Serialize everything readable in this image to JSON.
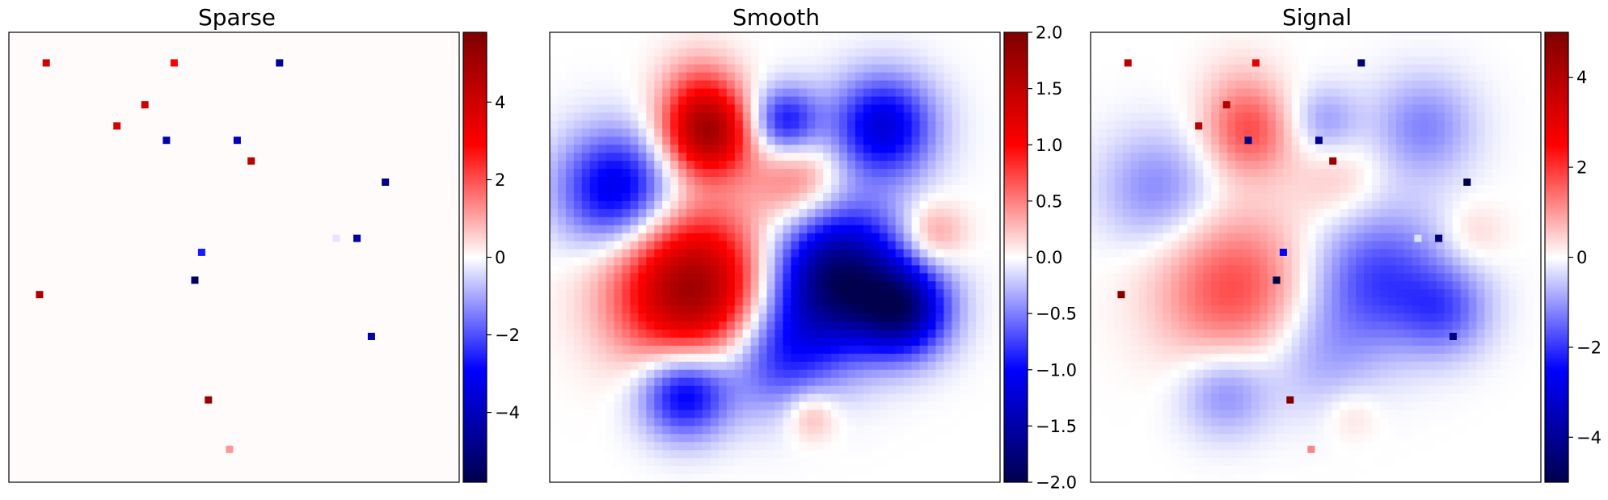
{
  "chart_data": [
    {
      "type": "heatmap",
      "title": "Sparse",
      "grid": false,
      "colormap": "seismic",
      "axes_visible": false,
      "colorbar": {
        "vmin": -5.8,
        "vmax": 5.8,
        "ticks": [
          4,
          2,
          0,
          -2,
          -4
        ],
        "tick_labels": [
          "4",
          "2",
          "0",
          "−2",
          "−4"
        ]
      },
      "background_value": 0,
      "spikes": [
        {
          "x": 0.083,
          "y": 0.068,
          "value": 3.9
        },
        {
          "x": 0.367,
          "y": 0.068,
          "value": 3.0
        },
        {
          "x": 0.601,
          "y": 0.068,
          "value": -4.5
        },
        {
          "x": 0.302,
          "y": 0.161,
          "value": 4.0
        },
        {
          "x": 0.24,
          "y": 0.208,
          "value": 3.8
        },
        {
          "x": 0.35,
          "y": 0.24,
          "value": -4.2
        },
        {
          "x": 0.507,
          "y": 0.24,
          "value": -4.0
        },
        {
          "x": 0.538,
          "y": 0.286,
          "value": 4.4
        },
        {
          "x": 0.836,
          "y": 0.333,
          "value": -5.0
        },
        {
          "x": 0.727,
          "y": 0.458,
          "value": -0.3
        },
        {
          "x": 0.773,
          "y": 0.458,
          "value": -4.4
        },
        {
          "x": 0.428,
          "y": 0.489,
          "value": -2.6
        },
        {
          "x": 0.413,
          "y": 0.551,
          "value": -5.5
        },
        {
          "x": 0.068,
          "y": 0.583,
          "value": 4.8
        },
        {
          "x": 0.805,
          "y": 0.676,
          "value": -4.2
        },
        {
          "x": 0.443,
          "y": 0.817,
          "value": 5.2
        },
        {
          "x": 0.49,
          "y": 0.927,
          "value": 1.2
        }
      ]
    },
    {
      "type": "heatmap",
      "title": "Smooth",
      "grid": false,
      "colormap": "seismic",
      "axes_visible": false,
      "colorbar": {
        "vmin": -2.0,
        "vmax": 2.0,
        "ticks": [
          2.0,
          1.5,
          1.0,
          0.5,
          0.0,
          -0.5,
          -1.0,
          -1.5,
          -2.0
        ],
        "tick_labels": [
          "2.0",
          "1.5",
          "1.0",
          "0.5",
          "0.0",
          "−0.5",
          "−1.0",
          "−1.5",
          "−2.0"
        ]
      },
      "blobs": [
        {
          "x": 0.35,
          "y": 0.22,
          "value": 1.7,
          "sigma": 0.07
        },
        {
          "x": 0.33,
          "y": 0.11,
          "value": 0.3,
          "sigma": 0.06
        },
        {
          "x": 0.55,
          "y": 0.33,
          "value": 0.6,
          "sigma": 0.07
        },
        {
          "x": 0.15,
          "y": 0.35,
          "value": -1.2,
          "sigma": 0.09
        },
        {
          "x": 0.52,
          "y": 0.2,
          "value": -1.0,
          "sigma": 0.055
        },
        {
          "x": 0.74,
          "y": 0.21,
          "value": -1.2,
          "sigma": 0.08
        },
        {
          "x": 0.32,
          "y": 0.57,
          "value": 1.8,
          "sigma": 0.12
        },
        {
          "x": 0.64,
          "y": 0.55,
          "value": -1.9,
          "sigma": 0.11
        },
        {
          "x": 0.79,
          "y": 0.62,
          "value": -1.3,
          "sigma": 0.07
        },
        {
          "x": 0.5,
          "y": 0.72,
          "value": -0.8,
          "sigma": 0.09
        },
        {
          "x": 0.3,
          "y": 0.8,
          "value": -1.2,
          "sigma": 0.07
        },
        {
          "x": 0.85,
          "y": 0.45,
          "value": 0.5,
          "sigma": 0.05
        },
        {
          "x": 0.58,
          "y": 0.85,
          "value": 0.4,
          "sigma": 0.04
        }
      ]
    },
    {
      "type": "heatmap",
      "title": "Signal",
      "grid": false,
      "colormap": "seismic",
      "axes_visible": false,
      "colorbar": {
        "vmin": -5.0,
        "vmax": 5.0,
        "ticks": [
          4,
          2,
          0,
          -2,
          -4
        ],
        "tick_labels": [
          "4",
          "2",
          "0",
          "−2",
          "−4"
        ]
      }
    }
  ]
}
